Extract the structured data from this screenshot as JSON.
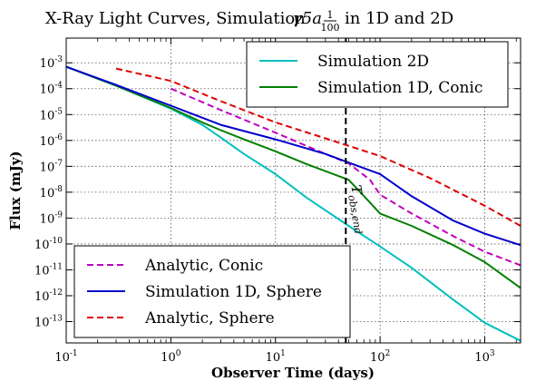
{
  "chart_data": {
    "type": "line",
    "title": "X-Ray Light Curves, Simulation γ5a 1/100 in 1D and 2D",
    "xlabel": "Observer Time (days)",
    "ylabel": "Flux (mJy)",
    "xscale": "log",
    "yscale": "log",
    "xlim": [
      0.1,
      2200
    ],
    "ylim": [
      1.5e-14,
      0.009
    ],
    "grid": true,
    "x_tick_labels": [
      "10^-1",
      "10^0",
      "10^1",
      "10^2",
      "10^3"
    ],
    "y_tick_labels": [
      "10^-13",
      "10^-12",
      "10^-11",
      "10^-10",
      "10^-9",
      "10^-8",
      "10^-7",
      "10^-6",
      "10^-5",
      "10^-4",
      "10^-3"
    ],
    "vertical_line": {
      "x": 47,
      "label": "T_obs,end",
      "style": "dashed",
      "color": "#000000"
    },
    "series": [
      {
        "name": "Simulation 2D",
        "color": "#00bfbf",
        "style": "solid",
        "legend": "top-right",
        "x": [
          0.1,
          0.3,
          1,
          2,
          3,
          5,
          10,
          20,
          50,
          100,
          200,
          500,
          1000,
          2200
        ],
        "y": [
          0.0007,
          0.00013,
          1.7e-05,
          4e-06,
          1.3e-06,
          3e-07,
          5e-08,
          6e-09,
          5e-10,
          8e-11,
          1.2e-11,
          7e-13,
          9e-14,
          1.8e-14
        ]
      },
      {
        "name": "Simulation 1D, Conic",
        "color": "#008000",
        "style": "solid",
        "legend": "top-right",
        "x": [
          0.1,
          0.3,
          1,
          2,
          3,
          5,
          10,
          20,
          50,
          80,
          100,
          200,
          500,
          1000,
          2200
        ],
        "y": [
          0.0007,
          0.00013,
          1.8e-05,
          5e-06,
          2.5e-06,
          1.1e-06,
          3.8e-07,
          1.2e-07,
          3e-08,
          4e-09,
          1.5e-09,
          5e-10,
          9e-11,
          2e-11,
          2e-12
        ]
      },
      {
        "name": "Analytic, Conic",
        "color": "#bf00bf",
        "style": "dashed",
        "legend": "bottom-left",
        "x": [
          1,
          3,
          10,
          30,
          50,
          80,
          100,
          200,
          500,
          1000,
          2200
        ],
        "y": [
          0.0001,
          1.5e-05,
          2e-06,
          3e-07,
          1.3e-07,
          3e-08,
          8e-09,
          1.5e-09,
          2e-10,
          5e-11,
          1.5e-11
        ]
      },
      {
        "name": "Simulation 1D, Sphere",
        "color": "#0000cc",
        "style": "solid",
        "legend": "bottom-left",
        "x": [
          0.1,
          0.3,
          1,
          3,
          10,
          30,
          50,
          100,
          200,
          500,
          1000,
          2200
        ],
        "y": [
          0.0007,
          0.00014,
          2.2e-05,
          4e-06,
          1.1e-06,
          3e-07,
          1.4e-07,
          5e-08,
          7e-09,
          8e-10,
          2.5e-10,
          9e-11
        ]
      },
      {
        "name": "Analytic, Sphere",
        "color": "#e00000",
        "style": "dashed",
        "legend": "bottom-left",
        "x": [
          0.3,
          1,
          3,
          10,
          30,
          100,
          300,
          1000,
          2200
        ],
        "y": [
          0.0006,
          0.0002,
          3.3e-05,
          5e-06,
          1.2e-06,
          2.5e-07,
          3.5e-08,
          3e-09,
          5e-10
        ]
      }
    ]
  }
}
